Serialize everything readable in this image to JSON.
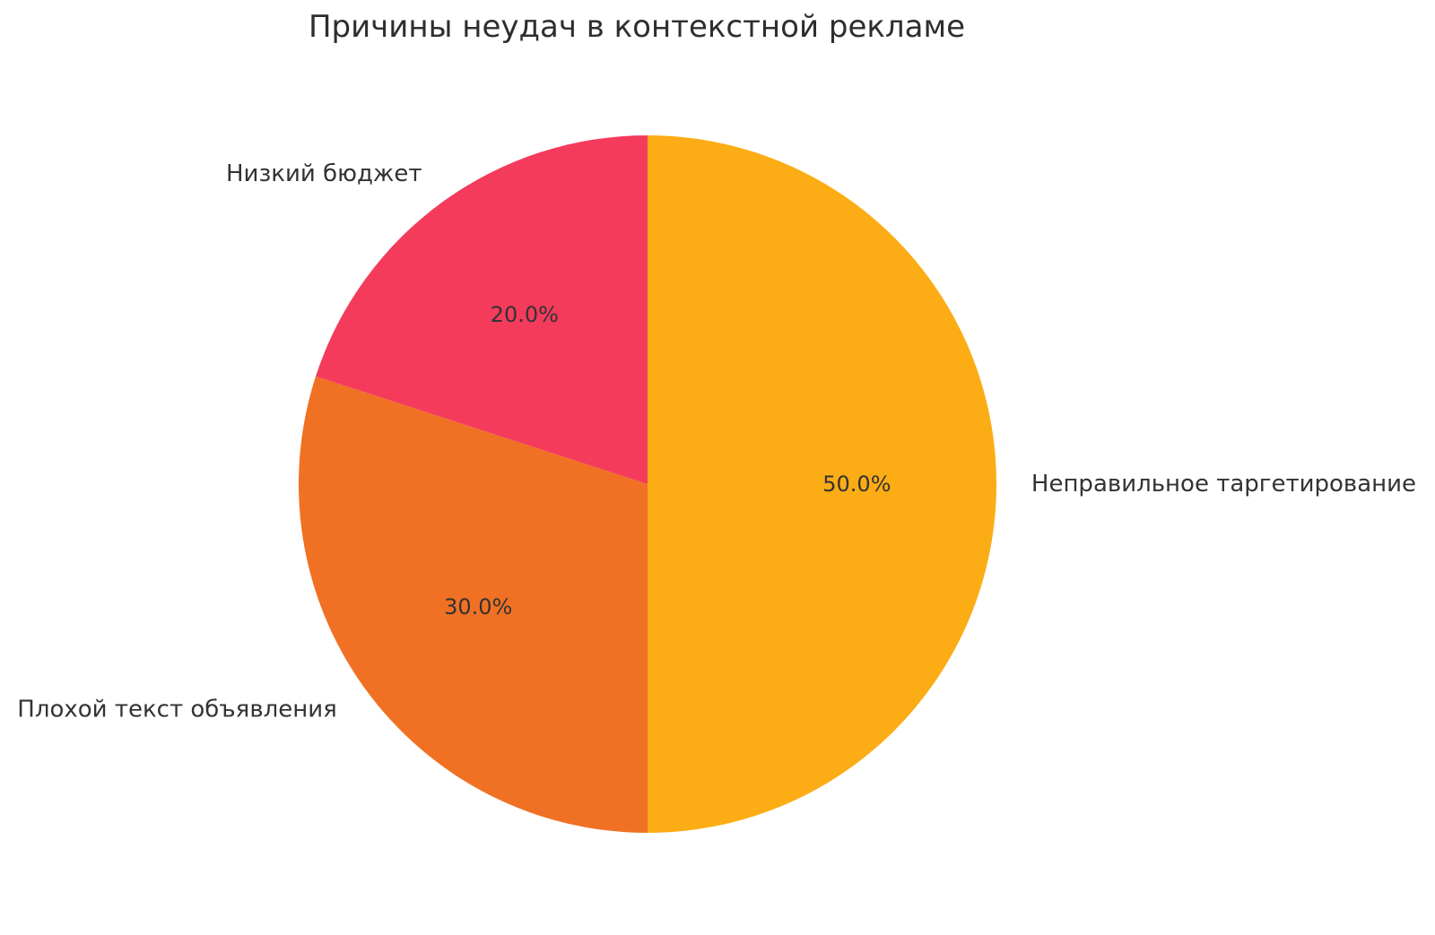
{
  "figure": {
    "title": "Причины неудач в контекстной рекламе"
  },
  "chart_data": {
    "type": "pie",
    "title": "Причины неудач в контекстной рекламе",
    "labels": [
      "Неправильное таргетирование",
      "Плохой текст объявления",
      "Низкий бюджет"
    ],
    "values": [
      50,
      30,
      20
    ],
    "percent_labels": [
      "50.0%",
      "30.0%",
      "20.0%"
    ],
    "colors": [
      "#FCAC14",
      "#F07124",
      "#F43B5C"
    ],
    "text_color": "#333333",
    "title_color": "#2e2e2e",
    "background_color": "#ffffff",
    "start_angle": 90,
    "direction": "clockwise",
    "pct_distance": 0.6,
    "label_distance": 1.1,
    "legend": "none",
    "grid": false
  }
}
